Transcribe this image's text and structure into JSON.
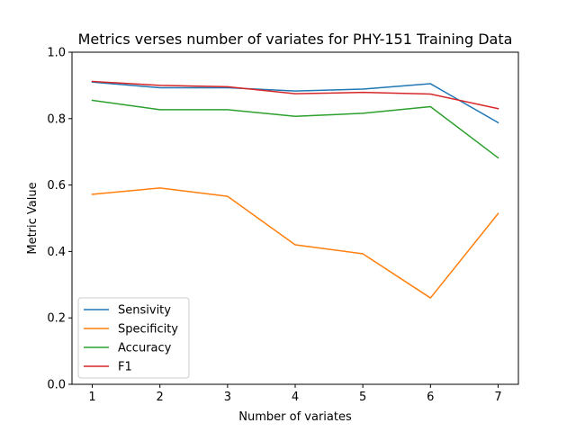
{
  "chart_data": {
    "type": "line",
    "title": "Metrics verses number of variates for PHY-151 Training Data",
    "xlabel": "Number of variates",
    "ylabel": "Metric Value",
    "x": [
      1,
      2,
      3,
      4,
      5,
      6,
      7
    ],
    "xlim": [
      0.7,
      7.3
    ],
    "ylim": [
      0.0,
      1.0
    ],
    "xticks": [
      1,
      2,
      3,
      4,
      5,
      6,
      7
    ],
    "yticks": [
      0.0,
      0.2,
      0.4,
      0.6,
      0.8,
      1.0
    ],
    "ytick_labels": [
      "0.0",
      "0.2",
      "0.4",
      "0.6",
      "0.8",
      "1.0"
    ],
    "grid": false,
    "legend_position": "lower-left",
    "series": [
      {
        "name": "Sensivity",
        "color": "#1f77b4",
        "values": [
          0.91,
          0.893,
          0.893,
          0.883,
          0.889,
          0.905,
          0.788
        ]
      },
      {
        "name": "Specificity",
        "color": "#ff7f0e",
        "values": [
          0.572,
          0.591,
          0.566,
          0.42,
          0.393,
          0.26,
          0.514
        ]
      },
      {
        "name": "Accuracy",
        "color": "#2ca02c",
        "values": [
          0.855,
          0.827,
          0.827,
          0.807,
          0.816,
          0.836,
          0.682
        ]
      },
      {
        "name": "F1",
        "color": "#d62728",
        "values": [
          0.912,
          0.9,
          0.896,
          0.875,
          0.879,
          0.874,
          0.83
        ]
      }
    ]
  }
}
